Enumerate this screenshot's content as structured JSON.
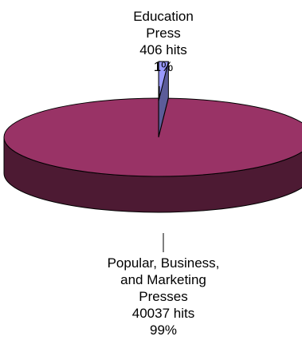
{
  "chart_data": {
    "type": "pie",
    "style": "3d",
    "title": "",
    "slices": [
      {
        "label_lines": [
          "Education",
          "Press"
        ],
        "hits_text": "406 hits",
        "percent_text": "1%",
        "value": 406,
        "percent": 1,
        "color": "#9999ff",
        "exploded": true
      },
      {
        "label_lines": [
          "Popular, Business,",
          "and Marketing",
          "Presses"
        ],
        "hits_text": "40037 hits",
        "percent_text": "99%",
        "value": 40037,
        "percent": 99,
        "color": "#993366",
        "exploded": false
      }
    ]
  }
}
